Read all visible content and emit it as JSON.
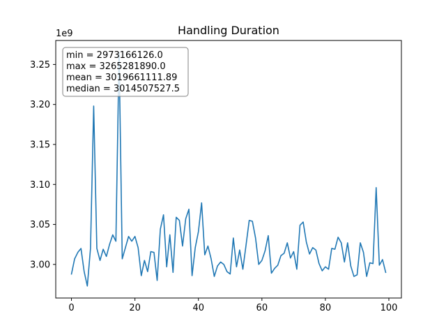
{
  "chart_data": {
    "type": "line",
    "title": "Handling Duration",
    "xlabel": "",
    "ylabel": "",
    "y_offset_label": "1e9",
    "xlim": [
      -4.95,
      103.95
    ],
    "ylim": [
      2.958,
      3.28
    ],
    "x_ticks": [
      0,
      20,
      40,
      60,
      80,
      100
    ],
    "x_tick_labels": [
      "0",
      "20",
      "40",
      "60",
      "80",
      "100"
    ],
    "y_ticks": [
      3.0,
      3.05,
      3.1,
      3.15,
      3.2,
      3.25
    ],
    "y_tick_labels": [
      "3.00",
      "3.05",
      "3.10",
      "3.15",
      "3.20",
      "3.25"
    ],
    "grid": false,
    "line_color": "#1f77b4",
    "stats_box": {
      "lines": [
        "min = 2973166126.0",
        "max = 3265281890.0",
        "mean = 3019661111.89",
        "median = 3014507527.5"
      ],
      "placement": "top-left"
    },
    "series": [
      {
        "x": [
          0,
          1,
          2,
          3,
          4,
          5,
          6,
          7,
          8,
          9,
          10,
          11,
          12,
          13,
          14,
          15,
          16,
          17,
          18,
          19,
          20,
          21,
          22,
          23,
          24,
          25,
          26,
          27,
          28,
          29,
          30,
          31,
          32,
          33,
          34,
          35,
          36,
          37,
          38,
          39,
          40,
          41,
          42,
          43,
          44,
          45,
          46,
          47,
          48,
          49,
          50,
          51,
          52,
          53,
          54,
          55,
          56,
          57,
          58,
          59,
          60,
          61,
          62,
          63,
          64,
          65,
          66,
          67,
          68,
          69,
          70,
          71,
          72,
          73,
          74,
          75,
          76,
          77,
          78,
          79,
          80,
          81,
          82,
          83,
          84,
          85,
          86,
          87,
          88,
          89,
          90,
          91,
          92,
          93,
          94,
          95,
          96,
          97,
          98,
          99
        ],
        "values": [
          2.988,
          3.007,
          3.015,
          3.02,
          2.991,
          2.973,
          3.02,
          3.198,
          3.02,
          3.005,
          3.019,
          3.01,
          3.025,
          3.037,
          3.029,
          3.265,
          3.007,
          3.021,
          3.035,
          3.029,
          3.035,
          3.021,
          2.986,
          3.005,
          2.991,
          3.016,
          3.015,
          2.98,
          3.044,
          3.062,
          2.997,
          3.037,
          2.99,
          3.059,
          3.055,
          3.023,
          3.057,
          3.069,
          2.986,
          3.021,
          3.041,
          3.077,
          3.012,
          3.023,
          3.007,
          2.985,
          2.998,
          3.003,
          3.0,
          2.991,
          2.988,
          3.033,
          2.997,
          3.018,
          2.994,
          3.024,
          3.055,
          3.054,
          3.033,
          3.0,
          3.005,
          3.017,
          3.036,
          2.989,
          2.995,
          2.999,
          3.011,
          3.014,
          3.027,
          3.008,
          3.016,
          2.994,
          3.049,
          3.053,
          3.028,
          3.013,
          3.021,
          3.018,
          3.001,
          2.992,
          2.997,
          2.994,
          3.02,
          3.019,
          3.034,
          3.027,
          3.003,
          3.027,
          2.998,
          2.985,
          2.987,
          3.027,
          3.015,
          2.985,
          3.002,
          3.001,
          3.096,
          2.999,
          3.006,
          2.99
        ]
      }
    ]
  }
}
